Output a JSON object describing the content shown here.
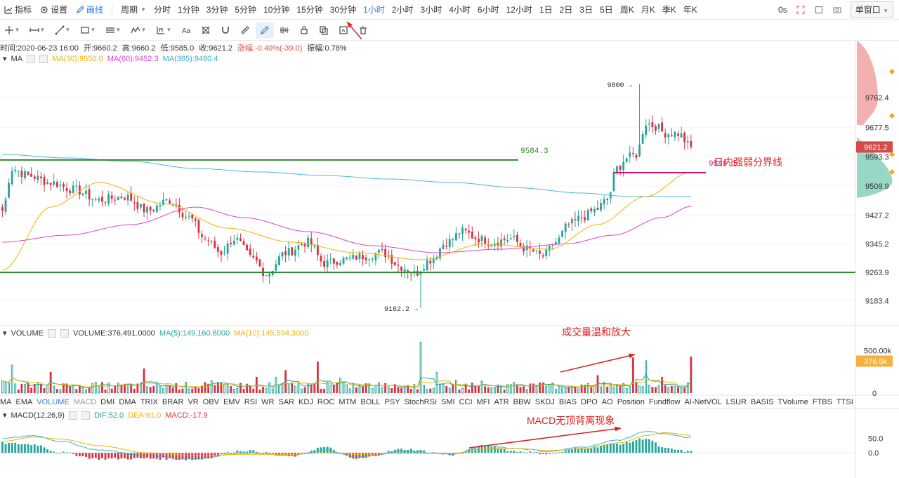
{
  "toolbar": {
    "indicators_label": "指标",
    "settings_label": "设置",
    "draw_label": "画线",
    "period_label": "周期",
    "periods": [
      "分时",
      "1分钟",
      "3分钟",
      "5分钟",
      "10分钟",
      "15分钟",
      "30分钟",
      "1小时",
      "2小时",
      "3小时",
      "4小时",
      "6小时",
      "12小时",
      "1日",
      "2日",
      "3日",
      "5日",
      "周K",
      "月K",
      "季K",
      "年K"
    ],
    "active_period": "1小时",
    "countdown": "0s",
    "window_mode": "单窗口"
  },
  "draw_tools": [
    "crosshair-icon",
    "horizontal-line-icon",
    "trend-line-icon",
    "rectangle-icon",
    "parallel-channel-icon",
    "wave-icon",
    "measure-icon",
    "text-icon",
    "fib-icon",
    "magnet-icon",
    "ruler-icon",
    "pencil-icon",
    "pattern-icon",
    "lock-icon",
    "copy-icon",
    "screenshot-icon",
    "trash-icon"
  ],
  "info": {
    "time": "时间:2020-06-23 16:00",
    "open": "开:9660.2",
    "high": "高:9660.2",
    "low": "低:9585.0",
    "close": "收:9621.2",
    "change": "涨幅:-0.40%(-39.0)",
    "amplitude": "振幅:0.78%"
  },
  "ma_legend": {
    "name": "MA",
    "ma30": "MA(30):9550.0",
    "ma60": "MA(60):9452.3",
    "ma365": "MA(365):9480.4"
  },
  "volume_legend": {
    "name": "VOLUME",
    "value": "VOLUME:376,491.0000",
    "ma5": "MA(5):149,160.8000",
    "ma10": "MA(10):145,594.3000"
  },
  "indicator_tabs": [
    "MA",
    "EMA",
    "VOLUME",
    "MACD",
    "DMI",
    "DMA",
    "TRIX",
    "BRAR",
    "VR",
    "OBV",
    "EMV",
    "RSI",
    "WR",
    "SAR",
    "KDJ",
    "ROC",
    "MTM",
    "BOLL",
    "PSY",
    "StochRSI",
    "SMI",
    "CCI",
    "MFI",
    "ATR",
    "BBW",
    "SKDJ",
    "BIAS",
    "DPO",
    "AO",
    "Position",
    "Fundflow",
    "AI-NetVOL",
    "LSUR",
    "BASIS",
    "TVolume",
    "FTBS",
    "TTSI"
  ],
  "active_indicator_tabs": [
    "VOLUME"
  ],
  "dim_indicator_tabs": [
    "MACD"
  ],
  "macd_legend": {
    "name": "MACD(12,26,9)",
    "dif": "DIF:52.0",
    "dea": "DEA:61.0",
    "macd": "MACD:-17.9"
  },
  "annotations": {
    "label_9584": "9584.3",
    "label_9548": "9548.1",
    "label_9548_text": "日内强弱分界线",
    "high_marker": "9800",
    "low_marker": "9162.2",
    "volume_text": "成交量温和放大",
    "macd_text": "MACD无顶背离现象"
  },
  "colors": {
    "up": "#26a69a",
    "down": "#d9333f",
    "ma30": "#f0b400",
    "ma60": "#dd44cc",
    "ma365": "#4fb8d8",
    "support": "#2e8b2e",
    "pivot": "#c0177f",
    "accent": "#2f7ae5",
    "annotation": "#e02020"
  },
  "chart_data": {
    "type": "candlestick",
    "price_axis": {
      "ticks": [
        9762.4,
        9677.5,
        9593.3,
        9509.9,
        9427.2,
        9345.2,
        9263.9,
        9183.4
      ],
      "current_price": 9621.2,
      "range": [
        9140,
        9850
      ]
    },
    "volume_axis": {
      "ticks": [
        "500.00k",
        "0"
      ],
      "current_volume": "376.5k",
      "range": [
        0,
        620000
      ]
    },
    "macd_axis": {
      "ticks": [
        50.0,
        0.0
      ],
      "range": [
        -80,
        110
      ]
    },
    "horizontal_levels": [
      {
        "price": 9584.3,
        "label": "9584.3"
      },
      {
        "price": 9548.1,
        "label": "9548.1"
      },
      {
        "price": 9263.9,
        "label": ""
      }
    ],
    "close_keypoints": [
      [
        0,
        9440
      ],
      [
        3,
        9560
      ],
      [
        8,
        9540
      ],
      [
        15,
        9520
      ],
      [
        22,
        9500
      ],
      [
        30,
        9470
      ],
      [
        38,
        9480
      ],
      [
        45,
        9440
      ],
      [
        52,
        9470
      ],
      [
        58,
        9420
      ],
      [
        63,
        9360
      ],
      [
        68,
        9320
      ],
      [
        72,
        9360
      ],
      [
        78,
        9300
      ],
      [
        82,
        9260
      ],
      [
        88,
        9320
      ],
      [
        95,
        9350
      ],
      [
        100,
        9290
      ],
      [
        106,
        9300
      ],
      [
        112,
        9310
      ],
      [
        118,
        9320
      ],
      [
        124,
        9280
      ],
      [
        128,
        9260
      ],
      [
        133,
        9300
      ],
      [
        138,
        9350
      ],
      [
        143,
        9380
      ],
      [
        148,
        9360
      ],
      [
        152,
        9350
      ],
      [
        158,
        9360
      ],
      [
        163,
        9330
      ],
      [
        168,
        9310
      ],
      [
        172,
        9350
      ],
      [
        176,
        9400
      ],
      [
        180,
        9420
      ],
      [
        184,
        9440
      ],
      [
        188,
        9470
      ],
      [
        191,
        9560
      ],
      [
        194,
        9590
      ],
      [
        197,
        9600
      ],
      [
        200,
        9690
      ],
      [
        203,
        9680
      ],
      [
        206,
        9660
      ],
      [
        210,
        9660
      ],
      [
        214,
        9621
      ]
    ],
    "ma30_keypoints": [
      [
        0,
        9270
      ],
      [
        15,
        9450
      ],
      [
        30,
        9520
      ],
      [
        50,
        9460
      ],
      [
        70,
        9390
      ],
      [
        90,
        9350
      ],
      [
        110,
        9320
      ],
      [
        130,
        9300
      ],
      [
        150,
        9345
      ],
      [
        170,
        9330
      ],
      [
        185,
        9400
      ],
      [
        200,
        9480
      ],
      [
        214,
        9550
      ]
    ],
    "ma60_keypoints": [
      [
        0,
        9350
      ],
      [
        20,
        9370
      ],
      [
        40,
        9400
      ],
      [
        60,
        9450
      ],
      [
        75,
        9420
      ],
      [
        95,
        9380
      ],
      [
        115,
        9340
      ],
      [
        135,
        9320
      ],
      [
        155,
        9330
      ],
      [
        175,
        9345
      ],
      [
        190,
        9370
      ],
      [
        205,
        9420
      ],
      [
        214,
        9452
      ]
    ],
    "ma365_keypoints": [
      [
        0,
        9600
      ],
      [
        20,
        9590
      ],
      [
        40,
        9580
      ],
      [
        60,
        9560
      ],
      [
        80,
        9550
      ],
      [
        100,
        9540
      ],
      [
        120,
        9530
      ],
      [
        140,
        9520
      ],
      [
        160,
        9505
      ],
      [
        180,
        9490
      ],
      [
        195,
        9480
      ],
      [
        214,
        9480
      ]
    ],
    "high_low_markers": [
      {
        "price": 9800,
        "label": "9800"
      },
      {
        "price": 9162.2,
        "label": "9162.2"
      }
    ],
    "volume_spike_keypoints": [
      [
        3,
        300000
      ],
      [
        15,
        250000
      ],
      [
        44,
        290000
      ],
      [
        88,
        270000
      ],
      [
        98,
        370000
      ],
      [
        130,
        600000
      ],
      [
        196,
        420000
      ],
      [
        200,
        380000
      ],
      [
        214,
        376491
      ]
    ],
    "macd_dif_keypoints": [
      [
        0,
        50
      ],
      [
        10,
        60
      ],
      [
        18,
        40
      ],
      [
        30,
        10
      ],
      [
        45,
        -10
      ],
      [
        60,
        -20
      ],
      [
        75,
        0
      ],
      [
        90,
        -10
      ],
      [
        100,
        10
      ],
      [
        110,
        -15
      ],
      [
        125,
        5
      ],
      [
        140,
        -5
      ],
      [
        150,
        25
      ],
      [
        160,
        15
      ],
      [
        170,
        5
      ],
      [
        180,
        20
      ],
      [
        192,
        45
      ],
      [
        200,
        75
      ],
      [
        206,
        65
      ],
      [
        214,
        52
      ]
    ],
    "macd_dea_keypoints": [
      [
        0,
        40
      ],
      [
        10,
        55
      ],
      [
        18,
        48
      ],
      [
        30,
        25
      ],
      [
        45,
        0
      ],
      [
        60,
        -10
      ],
      [
        75,
        -5
      ],
      [
        90,
        -5
      ],
      [
        100,
        0
      ],
      [
        110,
        -5
      ],
      [
        125,
        -2
      ],
      [
        140,
        -2
      ],
      [
        150,
        15
      ],
      [
        160,
        15
      ],
      [
        170,
        8
      ],
      [
        180,
        14
      ],
      [
        192,
        35
      ],
      [
        200,
        60
      ],
      [
        206,
        70
      ],
      [
        214,
        61
      ]
    ],
    "candle_count": 215
  }
}
